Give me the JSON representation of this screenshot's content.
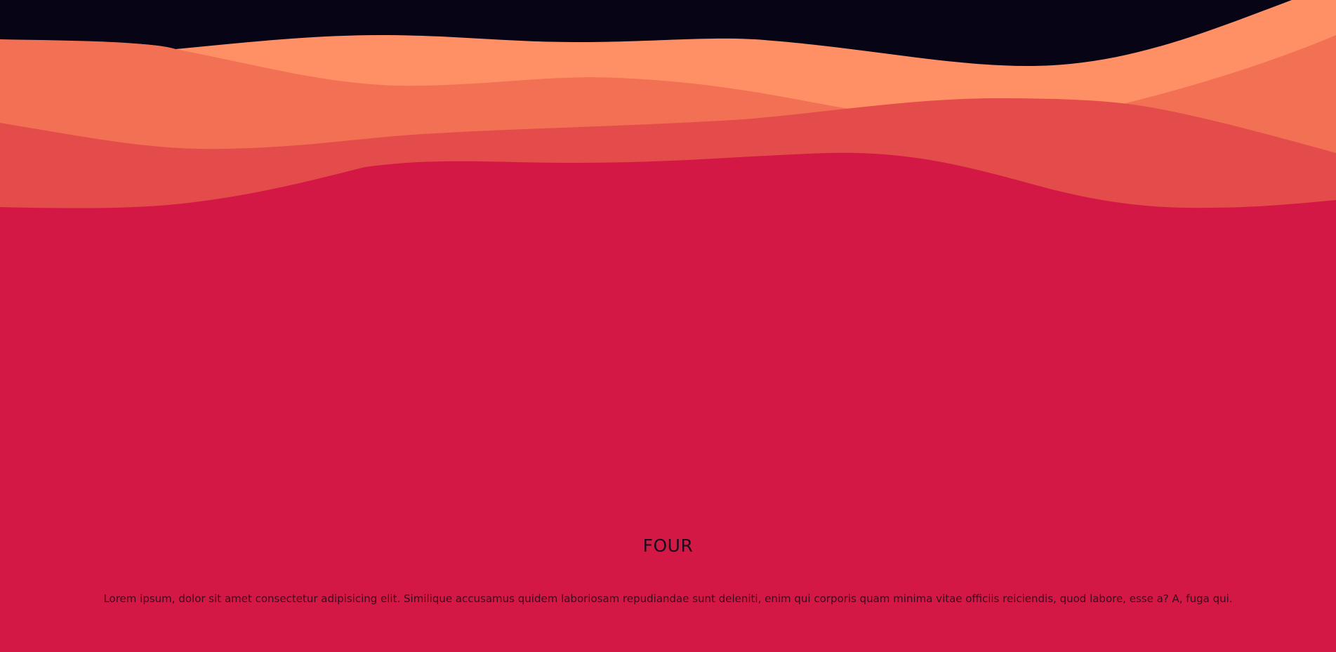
{
  "section": {
    "title": "FOUR",
    "body": "Lorem ipsum, dolor sit amet consectetur adipisicing elit. Similique accusamus quidem laboriosam repudiandae sunt deleniti, enim qui corporis quam minima vitae officiis reiciendis, quod labore, esse a? A, fuga qui."
  },
  "colors": {
    "background": "#d41845",
    "sky": "#070416",
    "wave_light_orange": "#ff9066",
    "wave_orange": "#f27054",
    "wave_red": "#e44b4b",
    "wave_crimson": "#d41845",
    "text": "#160d1e"
  }
}
